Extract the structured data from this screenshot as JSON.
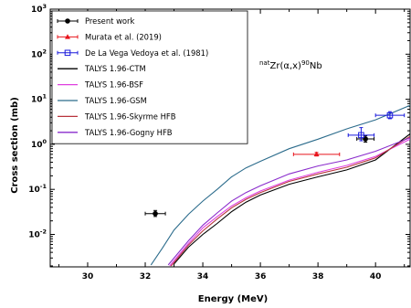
{
  "chart_data": {
    "type": "scatter",
    "xlabel": "Energy (MeV)",
    "ylabel": "Cross section (mb)",
    "xlim": [
      28.7,
      41.2
    ],
    "ylim_log10": [
      -2.72,
      3
    ],
    "y_scale": "log",
    "x_ticks": [
      30,
      32,
      34,
      36,
      38,
      40
    ],
    "y_ticks": [
      {
        "value": 1000,
        "base": "10",
        "exp": "3"
      },
      {
        "value": 100,
        "base": "10",
        "exp": "2"
      },
      {
        "value": 10,
        "base": "10",
        "exp": "1"
      },
      {
        "value": 1,
        "base": "10",
        "exp": "0"
      },
      {
        "value": 0.1,
        "base": "10",
        "exp": "-1"
      },
      {
        "value": 0.01,
        "base": "10",
        "exp": "-2"
      }
    ],
    "grid": false,
    "legend_position": "top-left",
    "annotation": {
      "sup1": "nat",
      "mid": "Zr(α,x)",
      "sup2": "90",
      "end": "Nb"
    },
    "experimental_series": [
      {
        "name": "Present work",
        "color": "#000000",
        "marker": "circle-filled",
        "points": [
          {
            "x": 32.35,
            "y": 0.029,
            "xerr": 0.35,
            "ylo": 0.025,
            "yhi": 0.034
          },
          {
            "x": 39.65,
            "y": 1.32,
            "xerr": 0.3,
            "ylo": 1.12,
            "yhi": 1.55
          }
        ]
      },
      {
        "name": "Murata et al. (2019)",
        "color": "#e8141c",
        "marker": "triangle-filled",
        "points": [
          {
            "x": 37.95,
            "y": 0.6,
            "xerr": 0.8,
            "ylo": 0.55,
            "yhi": 0.66
          }
        ]
      },
      {
        "name": "De La Vega Vedoya et al. (1981)",
        "color": "#1a1adc",
        "marker": "square-open",
        "points": [
          {
            "x": 39.5,
            "y": 1.6,
            "xerr": 0.45,
            "ylo": 1.2,
            "yhi": 2.35
          },
          {
            "x": 40.5,
            "y": 4.4,
            "xerr": 0.5,
            "ylo": 3.7,
            "yhi": 5.3
          }
        ]
      }
    ],
    "model_series": [
      {
        "name": "TALYS 1.96-CTM",
        "color": "#000000",
        "x": [
          33.0,
          33.5,
          34.0,
          34.5,
          35.0,
          35.5,
          36.0,
          37.0,
          38.0,
          39.0,
          40.0,
          41.2
        ],
        "y": [
          0.0022,
          0.0052,
          0.01,
          0.0175,
          0.032,
          0.052,
          0.075,
          0.13,
          0.19,
          0.27,
          0.45,
          1.7
        ]
      },
      {
        "name": "TALYS 1.96-BSF",
        "color": "#e040e0",
        "x": [
          32.85,
          33.5,
          34.0,
          34.5,
          35.0,
          35.5,
          36.0,
          37.0,
          38.0,
          39.0,
          40.0,
          41.2
        ],
        "y": [
          0.002,
          0.0063,
          0.014,
          0.025,
          0.043,
          0.065,
          0.092,
          0.16,
          0.24,
          0.34,
          0.54,
          1.3
        ]
      },
      {
        "name": "TALYS 1.96-GSM",
        "color": "#2c6c8c",
        "x": [
          32.2,
          32.6,
          33.0,
          33.5,
          34.0,
          34.5,
          35.0,
          35.5,
          36.0,
          37.0,
          38.0,
          39.0,
          40.0,
          41.2
        ],
        "y": [
          0.0021,
          0.005,
          0.0125,
          0.028,
          0.055,
          0.1,
          0.19,
          0.3,
          0.42,
          0.8,
          1.3,
          2.2,
          3.5,
          7.3
        ]
      },
      {
        "name": "TALYS 1.96-Skyrme HFB",
        "color": "#b8343c",
        "x": [
          32.9,
          33.5,
          34.0,
          34.5,
          35.0,
          35.5,
          36.0,
          37.0,
          38.0,
          39.0,
          40.0,
          41.2
        ],
        "y": [
          0.002,
          0.0058,
          0.012,
          0.022,
          0.039,
          0.06,
          0.085,
          0.15,
          0.22,
          0.31,
          0.5,
          1.5
        ]
      },
      {
        "name": "TALYS 1.96-Gogny HFB",
        "color": "#8a2ccc",
        "x": [
          32.8,
          33.5,
          34.0,
          34.5,
          35.0,
          35.5,
          36.0,
          37.0,
          38.0,
          39.0,
          40.0,
          41.2
        ],
        "y": [
          0.0021,
          0.0072,
          0.016,
          0.03,
          0.055,
          0.085,
          0.12,
          0.22,
          0.33,
          0.45,
          0.7,
          1.4
        ]
      }
    ]
  }
}
